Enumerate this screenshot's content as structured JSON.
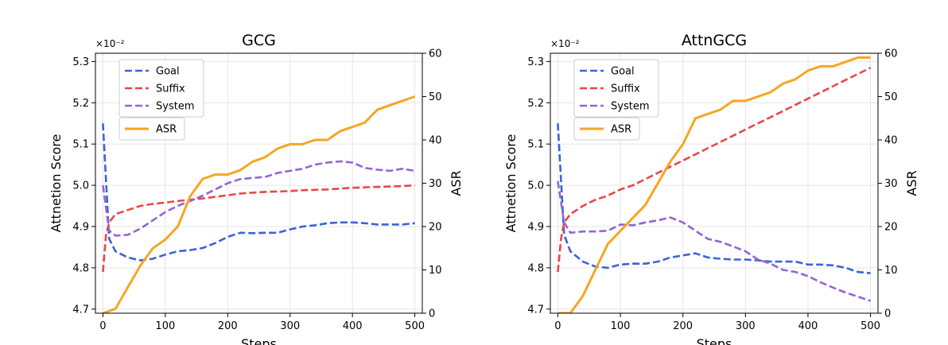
{
  "chart_data": [
    {
      "type": "line",
      "title": "GCG",
      "xlabel": "Steps",
      "ylabel": "Attnetion Score",
      "y2label": "ASR",
      "y_multiplier": "×10⁻²",
      "xlim": [
        -12,
        512
      ],
      "ylim": [
        4.69,
        5.32
      ],
      "y2lim": [
        0,
        60
      ],
      "xticks": [
        0,
        100,
        200,
        300,
        400,
        500
      ],
      "yticks": [
        4.7,
        4.8,
        4.9,
        5.0,
        5.1,
        5.2,
        5.3
      ],
      "y2ticks": [
        0,
        10,
        20,
        30,
        40,
        50,
        60
      ],
      "grid": true,
      "legend_placement": "upper-left",
      "series": [
        {
          "name": "Goal",
          "axis": "left",
          "style": "dashed",
          "color": "#3b63d8",
          "x": [
            0,
            10,
            20,
            40,
            60,
            80,
            100,
            120,
            140,
            160,
            180,
            200,
            220,
            240,
            260,
            280,
            300,
            320,
            340,
            360,
            380,
            400,
            420,
            440,
            460,
            480,
            500
          ],
          "y": [
            5.15,
            4.87,
            4.84,
            4.825,
            4.818,
            4.822,
            4.832,
            4.84,
            4.843,
            4.848,
            4.86,
            4.875,
            4.885,
            4.884,
            4.885,
            4.885,
            4.893,
            4.9,
            4.903,
            4.908,
            4.91,
            4.91,
            4.908,
            4.905,
            4.905,
            4.905,
            4.908
          ]
        },
        {
          "name": "Suffix",
          "axis": "left",
          "style": "dashed",
          "color": "#e8474a",
          "x": [
            0,
            5,
            10,
            20,
            40,
            60,
            80,
            100,
            120,
            140,
            160,
            180,
            200,
            220,
            240,
            260,
            280,
            300,
            320,
            340,
            360,
            380,
            400,
            420,
            440,
            460,
            480,
            500
          ],
          "y": [
            4.79,
            4.88,
            4.91,
            4.93,
            4.94,
            4.95,
            4.955,
            4.958,
            4.962,
            4.965,
            4.968,
            4.972,
            4.976,
            4.98,
            4.982,
            4.984,
            4.985,
            4.986,
            4.988,
            4.989,
            4.99,
            4.992,
            4.994,
            4.995,
            4.996,
            4.997,
            4.998,
            5.0
          ]
        },
        {
          "name": "System",
          "axis": "left",
          "style": "dashed",
          "color": "#9266d3",
          "x": [
            0,
            10,
            20,
            40,
            60,
            80,
            100,
            120,
            140,
            160,
            180,
            200,
            220,
            240,
            260,
            280,
            300,
            320,
            340,
            360,
            380,
            400,
            420,
            440,
            460,
            480,
            500
          ],
          "y": [
            5.0,
            4.89,
            4.878,
            4.88,
            4.895,
            4.915,
            4.935,
            4.95,
            4.962,
            4.975,
            4.99,
            5.005,
            5.015,
            5.018,
            5.02,
            5.03,
            5.035,
            5.04,
            5.05,
            5.055,
            5.058,
            5.055,
            5.042,
            5.038,
            5.035,
            5.04,
            5.035
          ]
        },
        {
          "name": "ASR",
          "axis": "right",
          "style": "solid",
          "color": "#f5a623",
          "x": [
            0,
            20,
            40,
            60,
            80,
            100,
            120,
            140,
            160,
            180,
            200,
            220,
            240,
            260,
            280,
            300,
            320,
            340,
            360,
            380,
            400,
            420,
            440,
            460,
            480,
            500
          ],
          "y": [
            0,
            1,
            6,
            11,
            15,
            17,
            20,
            27,
            31,
            32,
            32,
            33,
            35,
            36,
            38,
            39,
            39,
            40,
            40,
            42,
            43,
            44,
            47,
            48,
            49,
            50
          ]
        }
      ]
    },
    {
      "type": "line",
      "title": "AttnGCG",
      "xlabel": "Steps",
      "ylabel": "Attnetion Score",
      "y2label": "ASR",
      "y_multiplier": "×10⁻²",
      "xlim": [
        -12,
        512
      ],
      "ylim": [
        4.69,
        5.32
      ],
      "y2lim": [
        0,
        60
      ],
      "xticks": [
        0,
        100,
        200,
        300,
        400,
        500
      ],
      "yticks": [
        4.7,
        4.8,
        4.9,
        5.0,
        5.1,
        5.2,
        5.3
      ],
      "y2ticks": [
        0,
        10,
        20,
        30,
        40,
        50,
        60
      ],
      "grid": true,
      "legend_placement": "upper-left",
      "series": [
        {
          "name": "Goal",
          "axis": "left",
          "style": "dashed",
          "color": "#3b63d8",
          "x": [
            0,
            10,
            20,
            40,
            60,
            80,
            100,
            120,
            140,
            160,
            180,
            200,
            220,
            240,
            260,
            280,
            300,
            320,
            340,
            360,
            380,
            400,
            420,
            440,
            460,
            480,
            500
          ],
          "y": [
            5.15,
            4.88,
            4.84,
            4.815,
            4.803,
            4.8,
            4.808,
            4.81,
            4.81,
            4.815,
            4.825,
            4.83,
            4.835,
            4.825,
            4.822,
            4.82,
            4.82,
            4.818,
            4.815,
            4.815,
            4.815,
            4.808,
            4.808,
            4.806,
            4.8,
            4.79,
            4.787
          ]
        },
        {
          "name": "Suffix",
          "axis": "left",
          "style": "dashed",
          "color": "#e8474a",
          "x": [
            0,
            5,
            10,
            20,
            40,
            60,
            80,
            100,
            120,
            140,
            160,
            180,
            200,
            220,
            240,
            260,
            280,
            300,
            320,
            340,
            360,
            380,
            400,
            420,
            440,
            460,
            480,
            500
          ],
          "y": [
            4.79,
            4.87,
            4.91,
            4.93,
            4.95,
            4.965,
            4.975,
            4.99,
            5.0,
            5.015,
            5.03,
            5.045,
            5.06,
            5.075,
            5.09,
            5.105,
            5.12,
            5.135,
            5.15,
            5.165,
            5.18,
            5.195,
            5.21,
            5.225,
            5.24,
            5.255,
            5.27,
            5.285
          ]
        },
        {
          "name": "System",
          "axis": "left",
          "style": "dashed",
          "color": "#9266d3",
          "x": [
            0,
            10,
            20,
            40,
            60,
            80,
            100,
            120,
            140,
            160,
            180,
            200,
            220,
            240,
            260,
            280,
            300,
            320,
            340,
            360,
            380,
            400,
            420,
            440,
            460,
            480,
            500
          ],
          "y": [
            5.01,
            4.91,
            4.885,
            4.888,
            4.888,
            4.89,
            4.905,
            4.903,
            4.91,
            4.915,
            4.922,
            4.91,
            4.89,
            4.87,
            4.863,
            4.852,
            4.84,
            4.82,
            4.81,
            4.795,
            4.79,
            4.78,
            4.765,
            4.752,
            4.74,
            4.73,
            4.72
          ]
        },
        {
          "name": "ASR",
          "axis": "right",
          "style": "solid",
          "color": "#f5a623",
          "x": [
            0,
            20,
            40,
            60,
            80,
            100,
            120,
            140,
            160,
            180,
            200,
            220,
            240,
            260,
            280,
            300,
            320,
            340,
            360,
            380,
            400,
            420,
            440,
            460,
            480,
            500
          ],
          "y": [
            0,
            0,
            4,
            10,
            16,
            19,
            22,
            25,
            30,
            35,
            39,
            45,
            46,
            47,
            49,
            49,
            50,
            51,
            53,
            54,
            56,
            57,
            57,
            58,
            59,
            59
          ]
        }
      ]
    }
  ]
}
